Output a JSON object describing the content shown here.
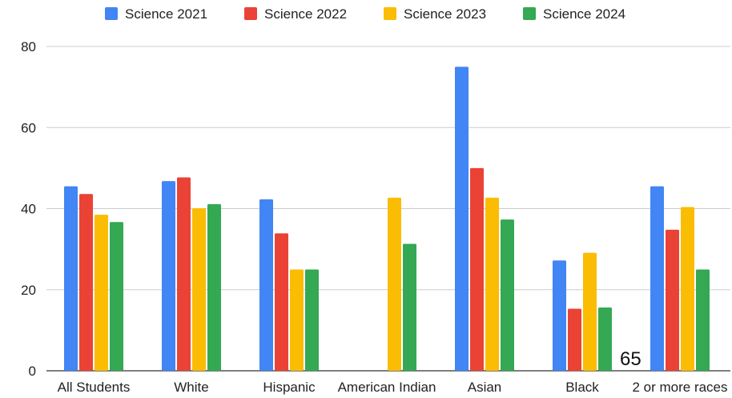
{
  "chart_data": {
    "type": "bar",
    "categories": [
      "All Students",
      "White",
      "Hispanic",
      "American Indian",
      "Asian",
      "Black",
      "2 or more races"
    ],
    "series": [
      {
        "name": "Science 2021",
        "color": "#4285F4",
        "values": [
          45.5,
          46.8,
          42.3,
          null,
          75.0,
          27.2,
          45.5
        ]
      },
      {
        "name": "Science 2022",
        "color": "#EA4335",
        "values": [
          43.6,
          47.7,
          33.9,
          null,
          50.0,
          15.3,
          34.8
        ]
      },
      {
        "name": "Science 2023",
        "color": "#FBBC04",
        "values": [
          38.5,
          40.1,
          25.0,
          42.7,
          42.7,
          29.1,
          40.4
        ]
      },
      {
        "name": "Science 2024",
        "color": "#34A853",
        "values": [
          36.7,
          41.1,
          25.0,
          31.3,
          37.3,
          15.6,
          25.0
        ]
      }
    ],
    "yticks": [
      "0",
      "20",
      "40",
      "60",
      "80"
    ],
    "ylim": [
      0,
      80
    ],
    "grid": true,
    "legend_position": "top",
    "title": "",
    "xlabel": "",
    "ylabel": "",
    "annotation": "65"
  }
}
